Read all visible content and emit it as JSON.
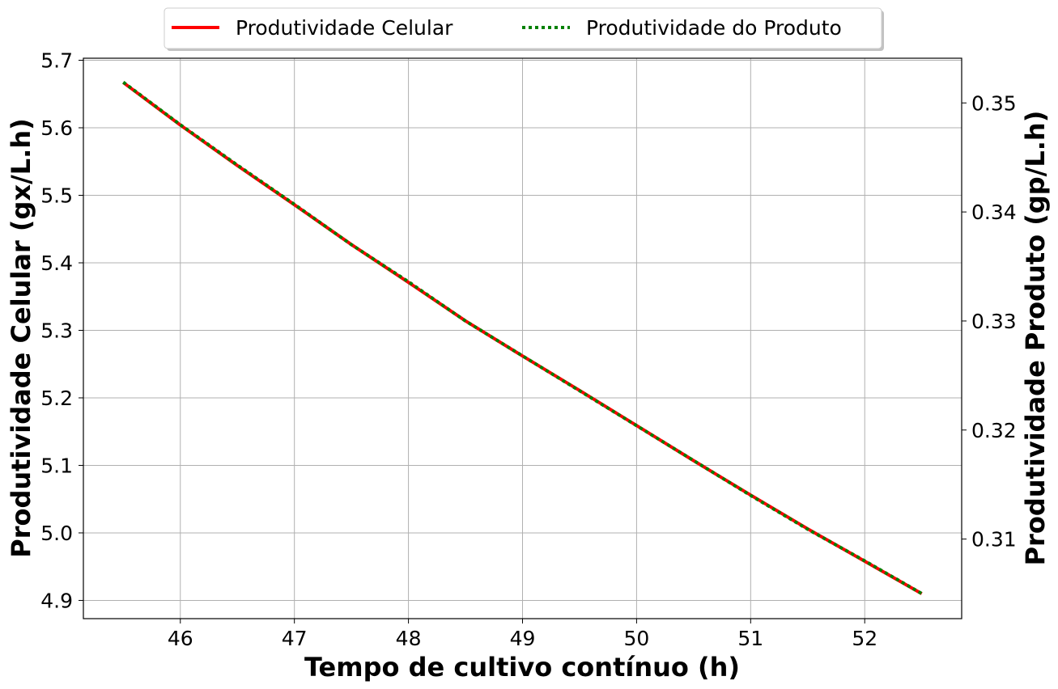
{
  "chart_data": {
    "type": "line",
    "title": "",
    "xlabel": "Tempo de cultivo contínuo (h)",
    "ylabel_left": "Produtividade Celular (gx/L.h)",
    "ylabel_right": "Produtividade Produto (gp/L.h)",
    "x_ticks": [
      "46",
      "47",
      "48",
      "49",
      "50",
      "51",
      "52"
    ],
    "y_left_ticks": [
      "4.9",
      "5.0",
      "5.1",
      "5.2",
      "5.3",
      "5.4",
      "5.5",
      "5.6",
      "5.7"
    ],
    "y_right_ticks": [
      "0.31",
      "0.32",
      "0.33",
      "0.34",
      "0.35"
    ],
    "xlim": [
      45.15,
      52.85
    ],
    "ylim_left": [
      4.873,
      5.703
    ],
    "ylim_right": [
      0.3027,
      0.3541
    ],
    "grid": true,
    "legend_position": "top-center, above plot",
    "series": [
      {
        "name": "Produtividade Celular",
        "axis": "left",
        "color": "#ff0000",
        "style": "solid",
        "x": [
          45.5,
          46.0,
          46.5,
          47.0,
          47.5,
          48.0,
          48.5,
          49.0,
          49.5,
          50.0,
          50.5,
          51.0,
          51.5,
          52.0,
          52.5
        ],
        "y": [
          5.667,
          5.604,
          5.544,
          5.486,
          5.427,
          5.371,
          5.314,
          5.262,
          5.211,
          5.159,
          5.107,
          5.056,
          5.006,
          4.958,
          4.91
        ]
      },
      {
        "name": "Produtividade do Produto",
        "axis": "right",
        "color": "#008000",
        "style": "dotted",
        "x": [
          45.5,
          46.0,
          46.5,
          47.0,
          47.5,
          48.0,
          48.5,
          49.0,
          49.5,
          50.0,
          50.5,
          51.0,
          51.5,
          52.0,
          52.5
        ],
        "y": [
          0.3519,
          0.348,
          0.3443,
          0.3407,
          0.337,
          0.3336,
          0.33,
          0.3268,
          0.3236,
          0.3204,
          0.3172,
          0.314,
          0.3109,
          0.308,
          0.305
        ]
      }
    ]
  }
}
